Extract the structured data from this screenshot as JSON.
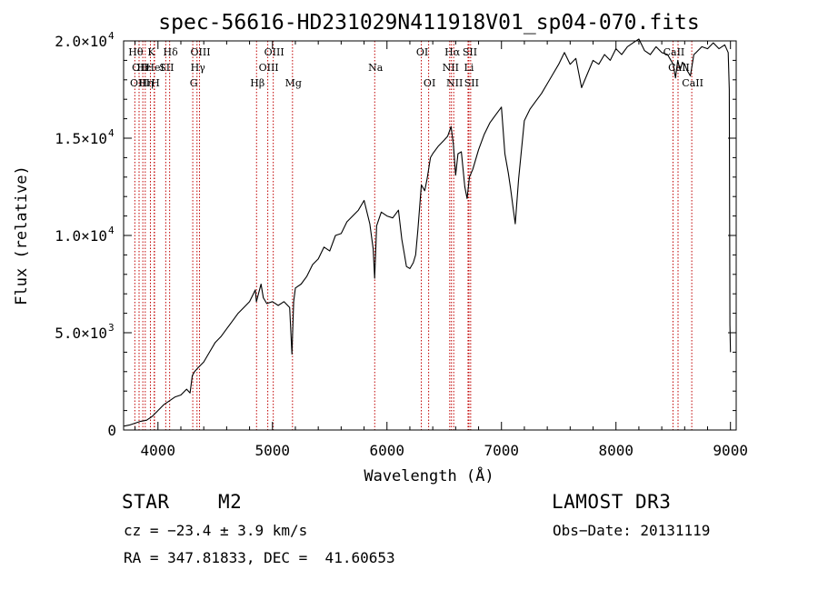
{
  "chart_data": {
    "type": "line",
    "title": "spec-56616-HD231029N411918V01_sp04-070.fits",
    "xlabel": "Wavelength (Å)",
    "ylabel": "Flux (relative)",
    "xlim": [
      3700,
      9050
    ],
    "ylim": [
      0,
      20000
    ],
    "xticks": [
      {
        "value": 4000,
        "label": "4000"
      },
      {
        "value": 5000,
        "label": "5000"
      },
      {
        "value": 6000,
        "label": "6000"
      },
      {
        "value": 7000,
        "label": "7000"
      },
      {
        "value": 8000,
        "label": "8000"
      },
      {
        "value": 9000,
        "label": "9000"
      }
    ],
    "yticks": [
      {
        "value": 0,
        "mant": "0",
        "exp": ""
      },
      {
        "value": 5000,
        "mant": "5.0×10",
        "exp": "3"
      },
      {
        "value": 10000,
        "mant": "1.0×10",
        "exp": "4"
      },
      {
        "value": 15000,
        "mant": "1.5×10",
        "exp": "4"
      },
      {
        "value": 20000,
        "mant": "2.0×10",
        "exp": "4"
      }
    ],
    "series": [
      {
        "name": "spectrum",
        "x": [
          3705,
          3750,
          3800,
          3850,
          3900,
          3950,
          4000,
          4050,
          4100,
          4150,
          4200,
          4250,
          4280,
          4300,
          4320,
          4350,
          4400,
          4450,
          4500,
          4550,
          4600,
          4650,
          4700,
          4750,
          4800,
          4850,
          4860,
          4900,
          4920,
          4950,
          5000,
          5050,
          5100,
          5150,
          5170,
          5185,
          5200,
          5250,
          5300,
          5350,
          5400,
          5450,
          5500,
          5550,
          5600,
          5650,
          5700,
          5750,
          5800,
          5850,
          5880,
          5892,
          5900,
          5910,
          5950,
          6000,
          6050,
          6100,
          6130,
          6150,
          6170,
          6200,
          6230,
          6250,
          6270,
          6300,
          6330,
          6350,
          6380,
          6400,
          6450,
          6500,
          6530,
          6560,
          6580,
          6600,
          6620,
          6650,
          6680,
          6700,
          6720,
          6750,
          6800,
          6850,
          6900,
          6950,
          7000,
          7030,
          7060,
          7080,
          7100,
          7120,
          7150,
          7200,
          7250,
          7300,
          7350,
          7400,
          7450,
          7500,
          7550,
          7600,
          7650,
          7700,
          7750,
          7800,
          7850,
          7900,
          7950,
          8000,
          8050,
          8100,
          8150,
          8200,
          8250,
          8300,
          8350,
          8400,
          8450,
          8500,
          8520,
          8540,
          8560,
          8580,
          8600,
          8620,
          8650,
          8680,
          8700,
          8750,
          8800,
          8850,
          8900,
          8950,
          8980,
          8990,
          8995,
          9000
        ],
        "y": [
          200,
          250,
          350,
          450,
          500,
          700,
          1000,
          1300,
          1500,
          1700,
          1800,
          2100,
          1900,
          2800,
          3000,
          3200,
          3500,
          4000,
          4500,
          4800,
          5200,
          5600,
          6000,
          6300,
          6600,
          7200,
          6600,
          7500,
          6800,
          6500,
          6600,
          6400,
          6600,
          6300,
          3900,
          6600,
          7300,
          7500,
          7900,
          8500,
          8800,
          9400,
          9200,
          10000,
          10100,
          10700,
          11000,
          11300,
          11800,
          10600,
          9300,
          7800,
          9000,
          10500,
          11200,
          11000,
          10900,
          11300,
          9800,
          9100,
          8400,
          8300,
          8600,
          9000,
          10300,
          12600,
          12300,
          12900,
          14000,
          14200,
          14600,
          14900,
          15100,
          15600,
          14700,
          13100,
          14200,
          14300,
          12500,
          11900,
          13000,
          13400,
          14400,
          15200,
          15800,
          16200,
          16600,
          14200,
          13200,
          12400,
          11500,
          10600,
          12900,
          15900,
          16500,
          16900,
          17300,
          17800,
          18300,
          18800,
          19400,
          18800,
          19100,
          17600,
          18300,
          19000,
          18800,
          19300,
          19000,
          19600,
          19300,
          19700,
          19900,
          20100,
          19500,
          19300,
          19700,
          19400,
          19300,
          18800,
          18100,
          19000,
          18500,
          18900,
          18800,
          18500,
          18200,
          19300,
          19400,
          19700,
          19600,
          19900,
          19600,
          19800,
          19400,
          17500,
          5400,
          4000
        ]
      }
    ],
    "lines": [
      {
        "wl": 3798,
        "label": "Hθ",
        "row": 1
      },
      {
        "wl": 3835,
        "label": "OII",
        "row": 2
      },
      {
        "wl": 3835,
        "label": "OIII",
        "row": 3
      },
      {
        "wl": 3868,
        "label": "Hε",
        "row": 2
      },
      {
        "wl": 3889,
        "label": "Hη",
        "row": 3
      },
      {
        "wl": 3934,
        "label": "K",
        "row": 1
      },
      {
        "wl": 3970,
        "label": "H",
        "row": 3
      },
      {
        "wl": 3967,
        "label": "HeI",
        "row": 2
      },
      {
        "wl": 4068,
        "label": "SII",
        "row": 2
      },
      {
        "wl": 4102,
        "label": "Hδ",
        "row": 1
      },
      {
        "wl": 4304,
        "label": "G",
        "row": 3
      },
      {
        "wl": 4341,
        "label": "Hγ",
        "row": 2
      },
      {
        "wl": 4363,
        "label": "OIII",
        "row": 1
      },
      {
        "wl": 4861,
        "label": "Hβ",
        "row": 3
      },
      {
        "wl": 4959,
        "label": "OIII",
        "row": 2
      },
      {
        "wl": 5007,
        "label": "OIII",
        "row": 1
      },
      {
        "wl": 5175,
        "label": "Mg",
        "row": 3
      },
      {
        "wl": 5893,
        "label": "Na",
        "row": 2
      },
      {
        "wl": 6300,
        "label": "OI",
        "row": 1
      },
      {
        "wl": 6364,
        "label": "OI",
        "row": 3
      },
      {
        "wl": 6548,
        "label": "NII",
        "row": 2
      },
      {
        "wl": 6563,
        "label": "Hα",
        "row": 1
      },
      {
        "wl": 6583,
        "label": "NII",
        "row": 3
      },
      {
        "wl": 6708,
        "label": "Li",
        "row": 2
      },
      {
        "wl": 6716,
        "label": "SII",
        "row": 1
      },
      {
        "wl": 6731,
        "label": "SII",
        "row": 3
      },
      {
        "wl": 8498,
        "label": "CaII",
        "row": 1
      },
      {
        "wl": 8542,
        "label": "CaII",
        "row": 2
      },
      {
        "wl": 8662,
        "label": "CaII",
        "row": 3
      }
    ],
    "line_color": "#c00000"
  },
  "info": {
    "object_type": "STAR",
    "subclass": "M2",
    "survey": "LAMOST DR3",
    "cz": "cz = −23.4 ± 3.9 km/s",
    "obs_date": "Obs−Date: 20131119",
    "coords": "RA = 347.81833, DEC =  41.60653"
  }
}
